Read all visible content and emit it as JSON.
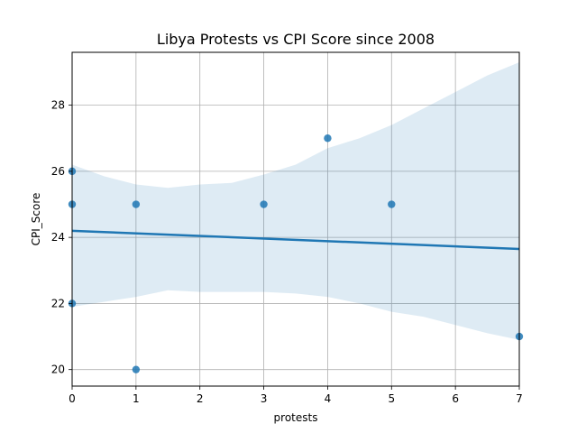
{
  "chart_data": {
    "type": "scatter",
    "title": "Libya Protests vs CPI Score since 2008",
    "xlabel": "protests",
    "ylabel": "CPI_Score",
    "xlim": [
      0,
      7
    ],
    "ylim": [
      19.5,
      29.6
    ],
    "grid": true,
    "x_ticks": [
      0,
      1,
      2,
      3,
      4,
      5,
      6,
      7
    ],
    "y_ticks": [
      20,
      22,
      24,
      26,
      28
    ],
    "x_tick_labels": [
      "0",
      "1",
      "2",
      "3",
      "4",
      "5",
      "6",
      "7"
    ],
    "y_tick_labels": [
      "20",
      "22",
      "24",
      "26",
      "28"
    ],
    "points": [
      {
        "x": 0,
        "y": 26
      },
      {
        "x": 0,
        "y": 25
      },
      {
        "x": 0,
        "y": 22
      },
      {
        "x": 1,
        "y": 25
      },
      {
        "x": 1,
        "y": 20
      },
      {
        "x": 3,
        "y": 25
      },
      {
        "x": 4,
        "y": 27
      },
      {
        "x": 5,
        "y": 25
      },
      {
        "x": 7,
        "y": 21
      }
    ],
    "regression": {
      "x": [
        0,
        7
      ],
      "y": [
        24.2,
        23.65
      ]
    },
    "confidence_band": {
      "x": [
        0,
        0.5,
        1,
        1.5,
        2,
        2.5,
        3,
        3.5,
        4,
        4.5,
        5,
        5.5,
        6,
        6.5,
        7
      ],
      "upper": [
        26.2,
        25.85,
        25.6,
        25.5,
        25.6,
        25.65,
        25.9,
        26.2,
        26.7,
        27.0,
        27.4,
        27.9,
        28.4,
        28.9,
        29.3
      ],
      "lower": [
        21.9,
        22.05,
        22.2,
        22.4,
        22.35,
        22.35,
        22.35,
        22.3,
        22.2,
        22.0,
        21.75,
        21.6,
        21.35,
        21.1,
        20.9
      ]
    },
    "colors": {
      "points": "#1f77b4",
      "line": "#1f77b4",
      "band": "#1f77b4",
      "grid": "#b0b0b0"
    }
  }
}
